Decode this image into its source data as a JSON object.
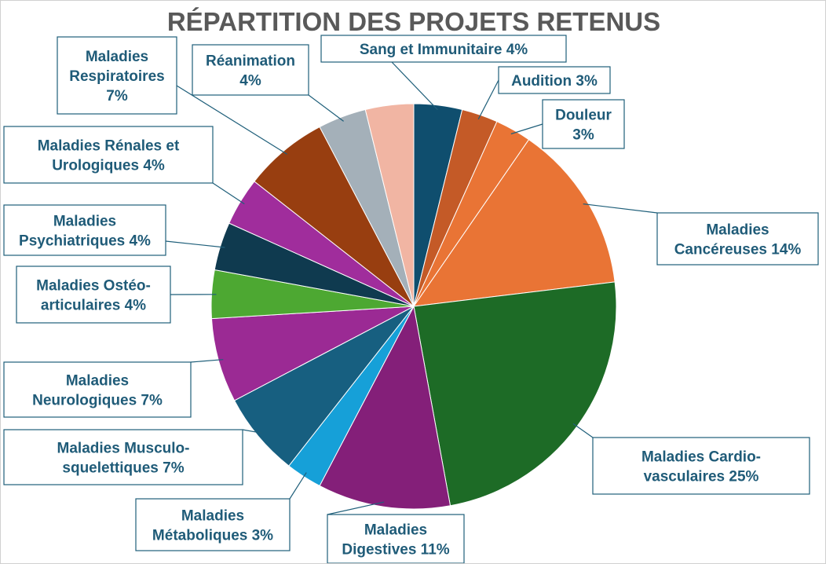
{
  "chart_data": {
    "type": "pie",
    "title": "RÉPARTITION DES PROJETS RETENUS",
    "slices": [
      {
        "lines": [
          "Sang et Immunitaire 4%"
        ],
        "value": 4,
        "color": "#0f4e6e"
      },
      {
        "lines": [
          "Audition 3%"
        ],
        "value": 3,
        "color": "#c45a27"
      },
      {
        "lines": [
          "Douleur",
          "3%"
        ],
        "value": 3,
        "color": "#e97435"
      },
      {
        "lines": [
          "Maladies",
          "Cancéreuses 14%"
        ],
        "value": 14,
        "color": "#e97435"
      },
      {
        "lines": [
          "Maladies Cardio-",
          "vasculaires 25%"
        ],
        "value": 25,
        "color": "#1d6b26"
      },
      {
        "lines": [
          "Maladies",
          "Digestives 11%"
        ],
        "value": 11,
        "color": "#841f79"
      },
      {
        "lines": [
          "Maladies",
          "Métaboliques 3%"
        ],
        "value": 3,
        "color": "#16a0d8"
      },
      {
        "lines": [
          "Maladies Musculo-",
          "squelettiques 7%"
        ],
        "value": 7,
        "color": "#175f80"
      },
      {
        "lines": [
          "Maladies",
          "Neurologiques 7%"
        ],
        "value": 7,
        "color": "#9b2a94"
      },
      {
        "lines": [
          "Maladies Ostéo-",
          "articulaires 4%"
        ],
        "value": 4,
        "color": "#4da832"
      },
      {
        "lines": [
          "Maladies",
          "Psychiatriques 4%"
        ],
        "value": 4,
        "color": "#0f3a4f"
      },
      {
        "lines": [
          "Maladies Rénales et",
          "Urologiques 4%"
        ],
        "value": 4,
        "color": "#a02d9c"
      },
      {
        "lines": [
          "Maladies",
          "Respiratoires",
          "7%"
        ],
        "value": 7,
        "color": "#983e10"
      },
      {
        "lines": [
          "Réanimation",
          "4%"
        ],
        "value": 4,
        "color": "#a4b0b9"
      },
      {
        "lines": [
          "Sang et Immunitaire 4%"
        ],
        "value": 4,
        "color": "#f1b5a3"
      }
    ]
  }
}
